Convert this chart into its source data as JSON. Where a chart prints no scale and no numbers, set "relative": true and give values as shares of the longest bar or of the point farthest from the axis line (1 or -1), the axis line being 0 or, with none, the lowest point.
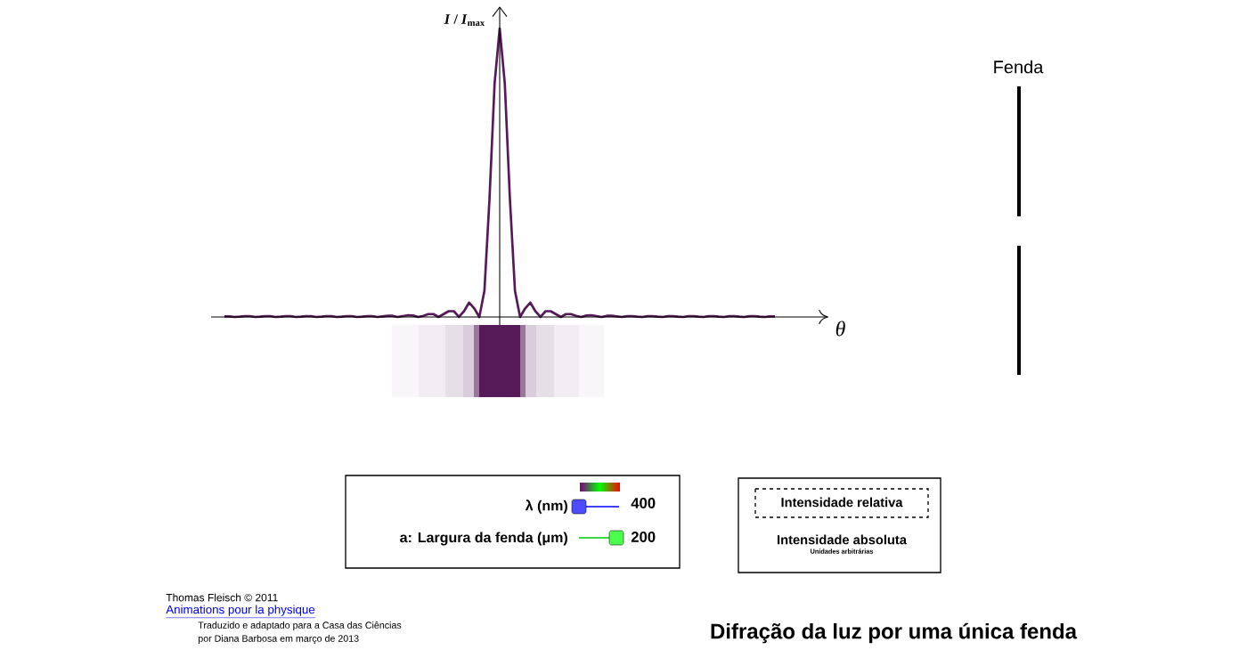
{
  "chart_data": {
    "type": "line",
    "relative": true,
    "xlabel": "θ",
    "ylabel": "*I* / *I*$_{max}$",
    "title": "Difração da luz por uma única fenda",
    "categories": [
      null,
      null,
      null,
      null,
      null,
      null,
      null,
      null,
      null,
      null,
      null,
      null,
      null,
      null,
      null,
      null,
      null,
      null,
      null,
      null,
      null,
      null,
      null,
      null,
      null,
      null,
      null,
      null,
      null,
      null,
      null,
      null,
      null,
      null,
      null,
      null,
      null,
      null,
      null,
      null,
      null,
      null,
      null,
      null,
      null,
      null,
      null,
      null,
      null,
      null,
      null,
      null,
      null,
      null,
      null,
      null,
      null,
      null,
      null,
      null,
      null,
      null,
      null,
      null,
      null,
      null,
      null,
      null,
      null,
      null,
      null,
      null,
      null,
      null,
      null,
      null,
      null,
      null,
      null,
      null,
      null,
      null,
      null,
      null,
      null,
      null,
      null,
      null,
      null,
      null,
      null,
      null,
      null,
      null,
      null,
      null,
      null,
      null,
      null,
      null,
      null,
      null,
      null,
      null,
      null,
      null,
      null,
      null,
      null
    ],
    "series": [
      {
        "color": "#561a59",
        "values": [
          0.002,
          0.002,
          0,
          0.001,
          0.003,
          0.003,
          0,
          0.001,
          0.003,
          0.003,
          0,
          0.001,
          0.003,
          0.003,
          0,
          0.001,
          0.003,
          0.003,
          0,
          0.001,
          0.003,
          0.003,
          0,
          0.001,
          0.003,
          0.003,
          0,
          0.001,
          0.003,
          0.003,
          0,
          0.002,
          0.004,
          0.004,
          0,
          0.003,
          0.006,
          0.005,
          0,
          0.004,
          0.01,
          0.01,
          0,
          0.01,
          0.02,
          0.02,
          0,
          0.02,
          0.05,
          0.03,
          0,
          0.09,
          0.41,
          0.81,
          1,
          0.81,
          0.41,
          0.09,
          0,
          0.03,
          0.05,
          0.02,
          0,
          0.02,
          0.02,
          0.01,
          0,
          0.01,
          0.01,
          0.004,
          0,
          0.005,
          0.006,
          0.003,
          0,
          0.004,
          0.004,
          0.002,
          0,
          0.003,
          0.003,
          0.001,
          0,
          0.003,
          0.003,
          0.001,
          0,
          0.003,
          0.003,
          0.001,
          0,
          0.003,
          0.003,
          0.001,
          0,
          0.003,
          0.003,
          0.001,
          0,
          0.003,
          0.003,
          0.001,
          0,
          0.003,
          0.003,
          0.001,
          0,
          0.002,
          0.002
        ]
      }
    ],
    "annotations": [
      "Fenda",
      "λ (nm)",
      "400",
      "a: Largura da fenda (μm)",
      "200",
      "Intensidade relativa",
      "Intensidade absoluta",
      "Unidades arbitrárias",
      "Thomas Fleisch © 2011",
      "Animations pour la physique",
      "Traduzido e adaptado para a Casa das Ciências",
      "por Diana Barbosa em março de 2013"
    ]
  }
}
